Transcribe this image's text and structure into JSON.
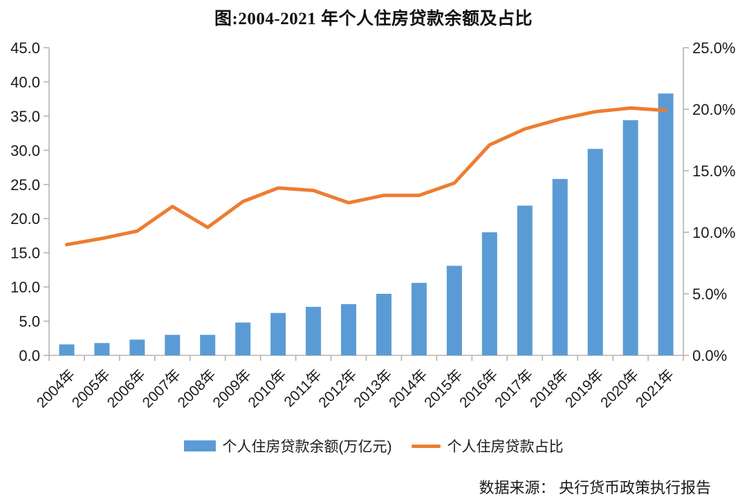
{
  "title": "图:2004-2021 年个人住房贷款余额及占比",
  "source": "数据来源： 央行货币政策执行报告",
  "colors": {
    "bar": "#5B9BD5",
    "line": "#ED7D31",
    "axis": "#B3B3B3",
    "text": "#1a1a1a"
  },
  "chart_data": {
    "type": "bar+line",
    "categories": [
      "2004年",
      "2005年",
      "2006年",
      "2007年",
      "2008年",
      "2009年",
      "2010年",
      "2011年",
      "2012年",
      "2013年",
      "2014年",
      "2015年",
      "2016年",
      "2017年",
      "2018年",
      "2019年",
      "2020年",
      "2021年"
    ],
    "series": [
      {
        "name": "个人住房贷款余额(万亿元)",
        "type": "bar",
        "axis": "left",
        "color": "#5B9BD5",
        "values": [
          1.6,
          1.8,
          2.3,
          3.0,
          3.0,
          4.8,
          6.2,
          7.1,
          7.5,
          9.0,
          10.6,
          13.1,
          18.0,
          21.9,
          25.8,
          30.2,
          34.4,
          38.3
        ]
      },
      {
        "name": "个人住房贷款占比",
        "type": "line",
        "axis": "right",
        "color": "#ED7D31",
        "values": [
          9.0,
          9.5,
          10.1,
          12.1,
          10.4,
          12.5,
          13.6,
          13.4,
          12.4,
          13.0,
          13.0,
          14.0,
          17.1,
          18.4,
          19.2,
          19.8,
          20.1,
          19.9
        ]
      }
    ],
    "left_axis": {
      "min": 0,
      "max": 45,
      "step": 5,
      "tick_labels": [
        "0.0",
        "5.0",
        "10.0",
        "15.0",
        "20.0",
        "25.0",
        "30.0",
        "35.0",
        "40.0",
        "45.0"
      ]
    },
    "right_axis": {
      "min": 0,
      "max": 25,
      "step": 5,
      "tick_labels": [
        "0.0%",
        "5.0%",
        "10.0%",
        "15.0%",
        "20.0%",
        "25.0%"
      ]
    },
    "grid": false,
    "legend_position": "bottom",
    "title": "图:2004-2021 年个人住房贷款余额及占比"
  }
}
